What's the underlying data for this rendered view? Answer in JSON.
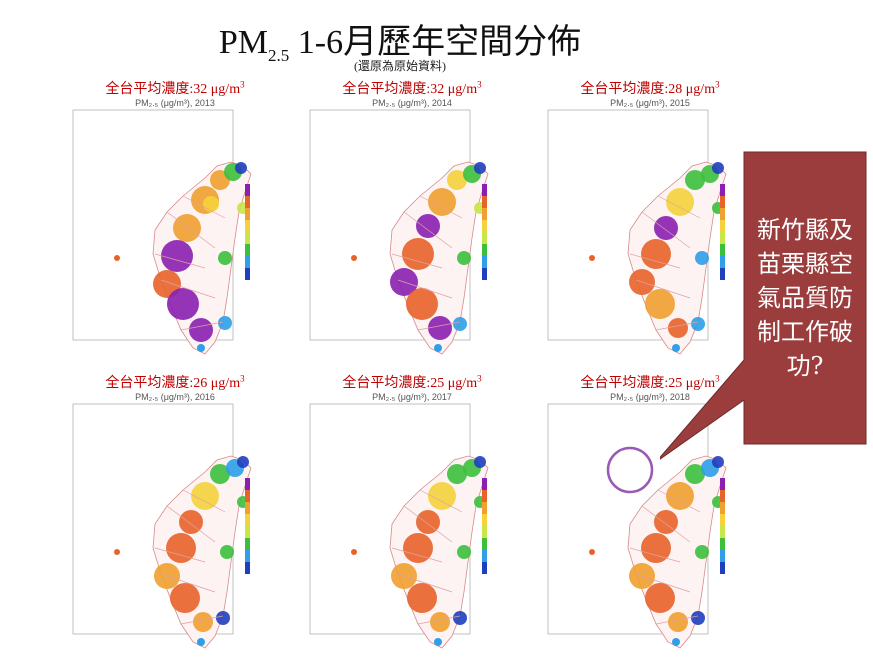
{
  "title": {
    "main": "PM",
    "sub": "2.5",
    "rest": " 1-6月歷年空間分佈"
  },
  "subtitle": "(還原為原始資料)",
  "avg_label_prefix": "全台平均濃度:",
  "unit_text": " μg/m",
  "unit_sup": "3",
  "maps": [
    {
      "year": "2013",
      "avg": "32",
      "map_title": "PM₂.₅ (μg/m³), 2013"
    },
    {
      "year": "2014",
      "avg": "32",
      "map_title": "PM₂.₅ (μg/m³), 2014"
    },
    {
      "year": "2015",
      "avg": "28",
      "map_title": "PM₂.₅ (μg/m³), 2015"
    },
    {
      "year": "2016",
      "avg": "26",
      "map_title": "PM₂.₅ (μg/m³), 2016"
    },
    {
      "year": "2017",
      "avg": "25",
      "map_title": "PM₂.₅ (μg/m³), 2017"
    },
    {
      "year": "2018",
      "avg": "25",
      "map_title": "PM₂.₅ (μg/m³), 2018"
    }
  ],
  "callout": {
    "text": "新竹縣及苗栗縣空氣品質防制工作破功?",
    "fill_color": "#9b3d3d",
    "highlight_color": "#9b59b6"
  },
  "colorscale": [
    "#1f3fbf",
    "#2e9fe8",
    "#3cbf3c",
    "#c8e646",
    "#f5d23c",
    "#f0a030",
    "#e8632a",
    "#8a1fb0"
  ]
}
